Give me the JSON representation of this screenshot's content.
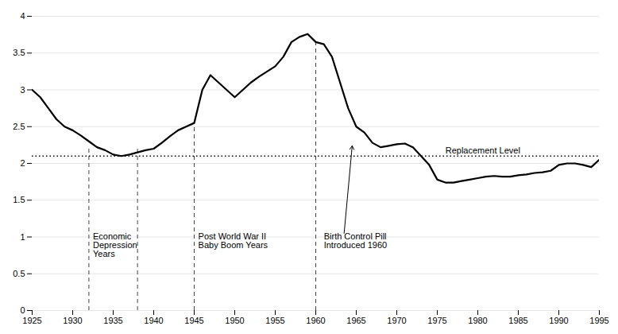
{
  "chart_data": {
    "type": "line",
    "x": [
      1925,
      1926,
      1927,
      1928,
      1929,
      1930,
      1931,
      1932,
      1933,
      1934,
      1935,
      1936,
      1937,
      1938,
      1939,
      1940,
      1941,
      1942,
      1943,
      1944,
      1945,
      1946,
      1947,
      1948,
      1949,
      1950,
      1951,
      1952,
      1953,
      1954,
      1955,
      1956,
      1957,
      1958,
      1959,
      1960,
      1961,
      1962,
      1963,
      1964,
      1965,
      1966,
      1967,
      1968,
      1969,
      1970,
      1971,
      1972,
      1973,
      1974,
      1975,
      1976,
      1977,
      1978,
      1979,
      1980,
      1981,
      1982,
      1983,
      1984,
      1985,
      1986,
      1987,
      1988,
      1989,
      1990,
      1991,
      1992,
      1993,
      1994,
      1995
    ],
    "values": [
      3.0,
      2.9,
      2.75,
      2.6,
      2.5,
      2.45,
      2.38,
      2.3,
      2.22,
      2.18,
      2.12,
      2.1,
      2.12,
      2.15,
      2.18,
      2.2,
      2.28,
      2.37,
      2.45,
      2.5,
      2.55,
      3.0,
      3.2,
      3.1,
      3.0,
      2.9,
      3.0,
      3.1,
      3.18,
      3.25,
      3.32,
      3.45,
      3.65,
      3.72,
      3.76,
      3.65,
      3.62,
      3.45,
      3.1,
      2.75,
      2.5,
      2.42,
      2.28,
      2.22,
      2.24,
      2.26,
      2.27,
      2.22,
      2.1,
      1.98,
      1.78,
      1.74,
      1.74,
      1.76,
      1.78,
      1.8,
      1.82,
      1.83,
      1.82,
      1.82,
      1.84,
      1.85,
      1.87,
      1.88,
      1.9,
      1.98,
      2.0,
      2.0,
      1.98,
      1.95,
      2.05
    ],
    "color": "#000000",
    "xlim": [
      1925,
      1995
    ],
    "ylim": [
      0,
      4
    ],
    "xticks": [
      1925,
      1930,
      1935,
      1940,
      1945,
      1950,
      1955,
      1960,
      1965,
      1970,
      1975,
      1980,
      1985,
      1990,
      1995
    ],
    "yticks": [
      0,
      0.5,
      1,
      1.5,
      2,
      2.5,
      3,
      3.5,
      4
    ],
    "grid": true,
    "reference_lines": [
      {
        "axis": "y",
        "value": 2.1,
        "color": "#000000",
        "line_style": "dotted",
        "label": "Replacement Level",
        "label_x": 1976,
        "label_y": 2.13
      },
      {
        "axis": "x",
        "value": 1932,
        "to": 2.22,
        "color": "#444444",
        "line_style": "dashed"
      },
      {
        "axis": "x",
        "value": 1938,
        "to": 2.22,
        "color": "#444444",
        "line_style": "dashed"
      },
      {
        "axis": "x",
        "value": 1945,
        "to": 2.55,
        "color": "#444444",
        "line_style": "dashed"
      },
      {
        "axis": "x",
        "value": 1960,
        "to": 3.65,
        "color": "#444444",
        "line_style": "dashed"
      }
    ],
    "annotations": [
      {
        "text": "Economic\nDepression\nYears",
        "x": 1932.5,
        "y": 1.05
      },
      {
        "text": "Post World War II\nBaby Boom Years",
        "x": 1945.5,
        "y": 1.05
      },
      {
        "text": "Birth Control Pill\nIntroduced 1960",
        "x": 1961.0,
        "y": 1.05
      }
    ],
    "arrows": [
      {
        "x1": 1963.5,
        "y1": 1.05,
        "x2": 1964.5,
        "y2": 2.24
      }
    ]
  }
}
